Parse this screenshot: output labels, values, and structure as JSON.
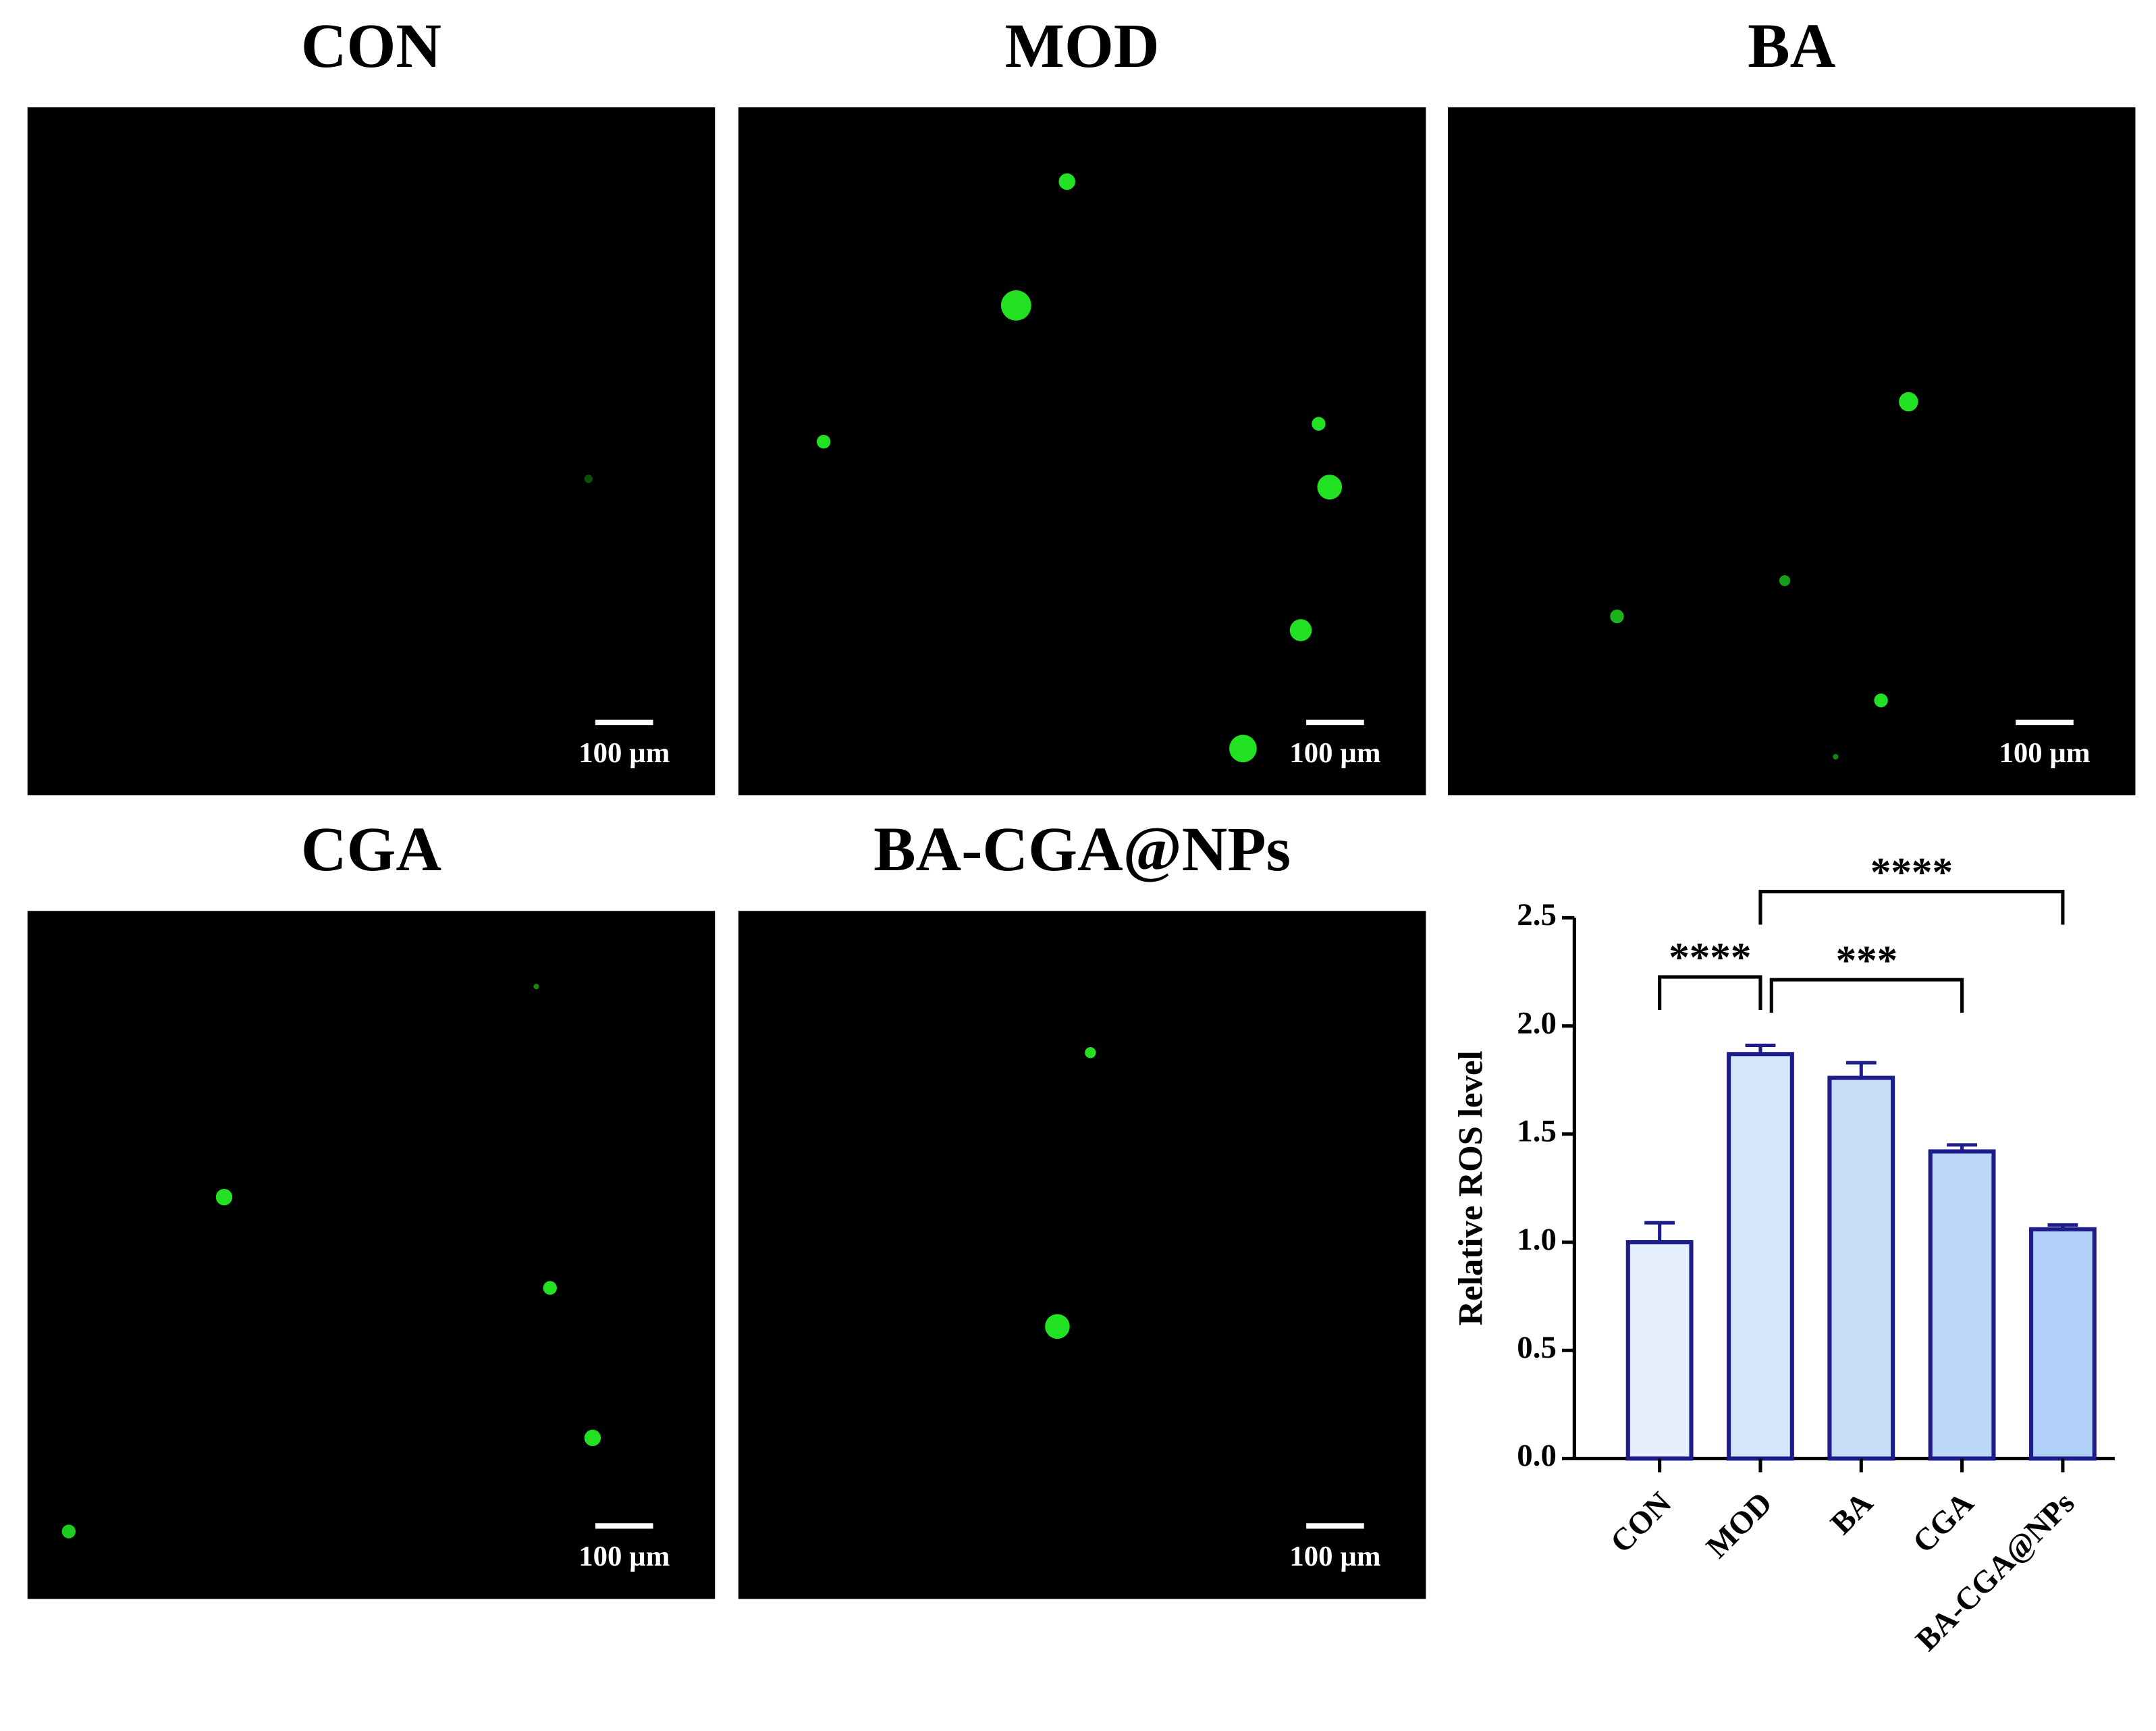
{
  "panels": [
    {
      "title": "CON",
      "scale_label": "100 µm"
    },
    {
      "title": "MOD",
      "scale_label": "100 µm"
    },
    {
      "title": "BA",
      "scale_label": "100 µm"
    },
    {
      "title": "CGA",
      "scale_label": "100 µm"
    },
    {
      "title": "BA-CGA@NPs",
      "scale_label": "100 µm"
    }
  ],
  "chart_data": {
    "type": "bar",
    "ylabel": "Relative ROS level",
    "categories": [
      "CON",
      "MOD",
      "BA",
      "CGA",
      "BA-CGA@NPs"
    ],
    "values": [
      1.0,
      1.87,
      1.76,
      1.42,
      1.06
    ],
    "errors": [
      0.09,
      0.04,
      0.07,
      0.03,
      0.02
    ],
    "colors": [
      "#e4eefb",
      "#d5e7fb",
      "#c8dff9",
      "#bcd8f9",
      "#b1d0f7"
    ],
    "edgecolor": "#1c1c8a",
    "ylim": [
      0,
      2.5
    ],
    "yticks": [
      {
        "value": 0,
        "label": "0.0"
      },
      0.5,
      {
        "value": 1,
        "label": "1.0"
      },
      1.5,
      {
        "value": 2,
        "label": "2.0"
      },
      2.5
    ],
    "annotations": [
      {
        "text": "****",
        "from": 0,
        "to": 1
      },
      {
        "text": "***",
        "from": 1,
        "to": 3
      },
      {
        "text": "****",
        "from": 1,
        "to": 4
      }
    ]
  }
}
